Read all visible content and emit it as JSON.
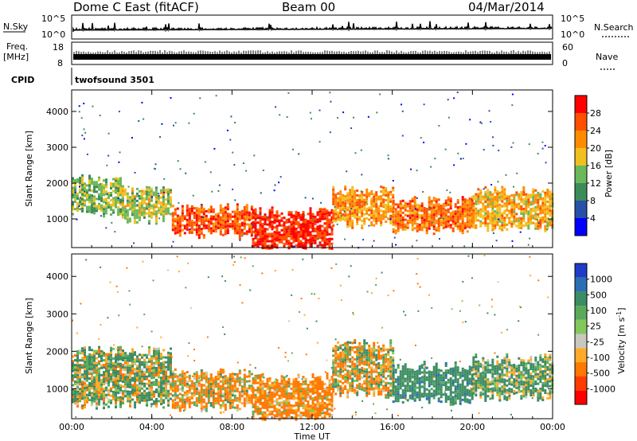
{
  "header": {
    "station": "Dome C East (fitACF)",
    "beam": "Beam 00",
    "date": "04/Mar/2014"
  },
  "strips": {
    "nsky_label": "N.Sky",
    "nsearch_label": "N.Search",
    "nsky_ticks": [
      "10^5",
      "10^0"
    ],
    "nsearch_ticks": [
      "10^5",
      "10^0"
    ],
    "freq_label_top": "Freq.",
    "freq_label_bottom": "[MHz]",
    "freq_ticks": [
      "18",
      "8"
    ],
    "nave_label": "Nave",
    "nave_ticks": [
      "60",
      "0"
    ],
    "cpid_label": "CPID",
    "cpid_value": "twofsound 3501"
  },
  "colors": {
    "power_scale": [
      "#0000ff",
      "#2850a8",
      "#3c8c5a",
      "#6ab85a",
      "#f0c020",
      "#ff8c00",
      "#ff5000",
      "#ff0000"
    ],
    "velocity_scale": [
      "#1e3cc8",
      "#2a6eb4",
      "#3c8c64",
      "#5aaa5a",
      "#82c85a",
      "#c8c8c0",
      "#ffaa28",
      "#ff7800",
      "#ff3c00",
      "#ff0000"
    ]
  },
  "chart_data": [
    {
      "type": "heatmap",
      "quantity": "Power",
      "xlabel": "Time UT",
      "ylabel": "Slant Range [km]",
      "x_ticks": [
        "00:00",
        "04:00",
        "08:00",
        "12:00",
        "16:00",
        "20:00",
        "00:00"
      ],
      "y_ticks": [
        1000,
        2000,
        3000,
        4000
      ],
      "ylim": [
        200,
        4600
      ],
      "colorbar_label": "Power [dB]",
      "colorbar_ticks": [
        "28",
        "24",
        "20",
        "16",
        "12",
        "8",
        "4"
      ],
      "colorbar_range": [
        0,
        32
      ],
      "echo_bands": [
        {
          "t_start": 0.0,
          "t_end": 2.5,
          "range_low": 1200,
          "range_high": 2100,
          "power": 14
        },
        {
          "t_start": 2.5,
          "t_end": 5.0,
          "range_low": 1000,
          "range_high": 1800,
          "power": 16
        },
        {
          "t_start": 5.0,
          "t_end": 9.0,
          "range_low": 600,
          "range_high": 1300,
          "power": 26
        },
        {
          "t_start": 9.0,
          "t_end": 13.0,
          "range_low": 200,
          "range_high": 1200,
          "power": 29
        },
        {
          "t_start": 13.0,
          "t_end": 16.0,
          "range_low": 900,
          "range_high": 1800,
          "power": 22
        },
        {
          "t_start": 16.0,
          "t_end": 20.0,
          "range_low": 700,
          "range_high": 1500,
          "power": 24
        },
        {
          "t_start": 20.0,
          "t_end": 24.0,
          "range_low": 800,
          "range_high": 1800,
          "power": 20
        }
      ]
    },
    {
      "type": "heatmap",
      "quantity": "Velocity",
      "xlabel": "Time UT",
      "ylabel": "Slant Range [km]",
      "x_ticks": [
        "00:00",
        "04:00",
        "08:00",
        "12:00",
        "16:00",
        "20:00",
        "00:00"
      ],
      "y_ticks": [
        1000,
        2000,
        3000,
        4000
      ],
      "ylim": [
        200,
        4600
      ],
      "colorbar_label": "Velocity [m s^-1]",
      "colorbar_ticks": [
        "1000",
        "500",
        "100",
        "25",
        "-25",
        "-100",
        "-500",
        "-1000"
      ],
      "colorbar_range": [
        -1000,
        1000
      ],
      "echo_bands": [
        {
          "t_start": 0.0,
          "t_end": 5.0,
          "range_low": 600,
          "range_high": 2000,
          "velocity": 80
        },
        {
          "t_start": 5.0,
          "t_end": 9.0,
          "range_low": 500,
          "range_high": 1400,
          "velocity": -120
        },
        {
          "t_start": 9.0,
          "t_end": 13.0,
          "range_low": 200,
          "range_high": 1300,
          "velocity": -200
        },
        {
          "t_start": 13.0,
          "t_end": 16.0,
          "range_low": 900,
          "range_high": 2200,
          "velocity": -60
        },
        {
          "t_start": 16.0,
          "t_end": 20.0,
          "range_low": 700,
          "range_high": 1600,
          "velocity": 300
        },
        {
          "t_start": 20.0,
          "t_end": 24.0,
          "range_low": 800,
          "range_high": 1800,
          "velocity": 150
        }
      ]
    }
  ]
}
